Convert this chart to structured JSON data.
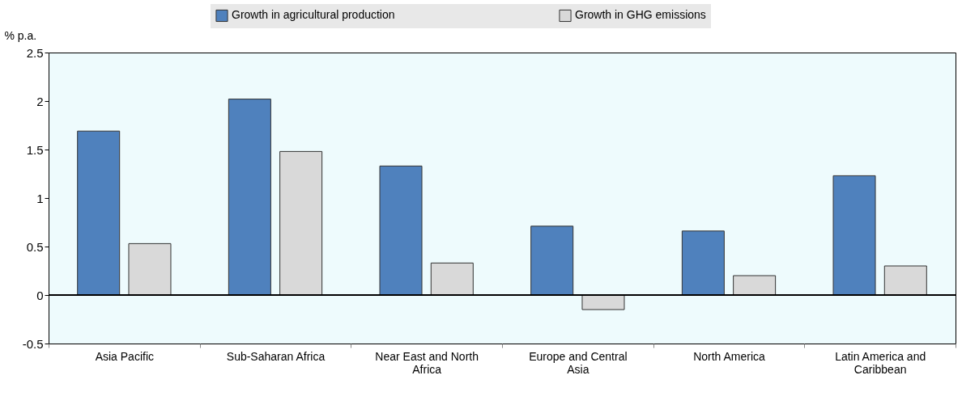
{
  "chart_data": {
    "type": "bar",
    "ylabel": "% p.a.",
    "categories": [
      "Asia Pacific",
      "Sub-Saharan Africa",
      "Near East and North Africa",
      "Europe and Central Asia",
      "North America",
      "Latin America and Caribbean"
    ],
    "series": [
      {
        "name": "Growth in agricultural production",
        "color": "#4f81bd",
        "values": [
          1.69,
          2.02,
          1.33,
          0.71,
          0.66,
          1.23
        ]
      },
      {
        "name": "Growth in GHG emissions",
        "color": "#d9d9d9",
        "values": [
          0.53,
          1.48,
          0.33,
          -0.15,
          0.2,
          0.3
        ]
      }
    ],
    "ylim": [
      -0.5,
      2.5
    ],
    "yticks": [
      -0.5,
      0,
      0.5,
      1,
      1.5,
      2,
      2.5
    ],
    "legend": "top"
  }
}
